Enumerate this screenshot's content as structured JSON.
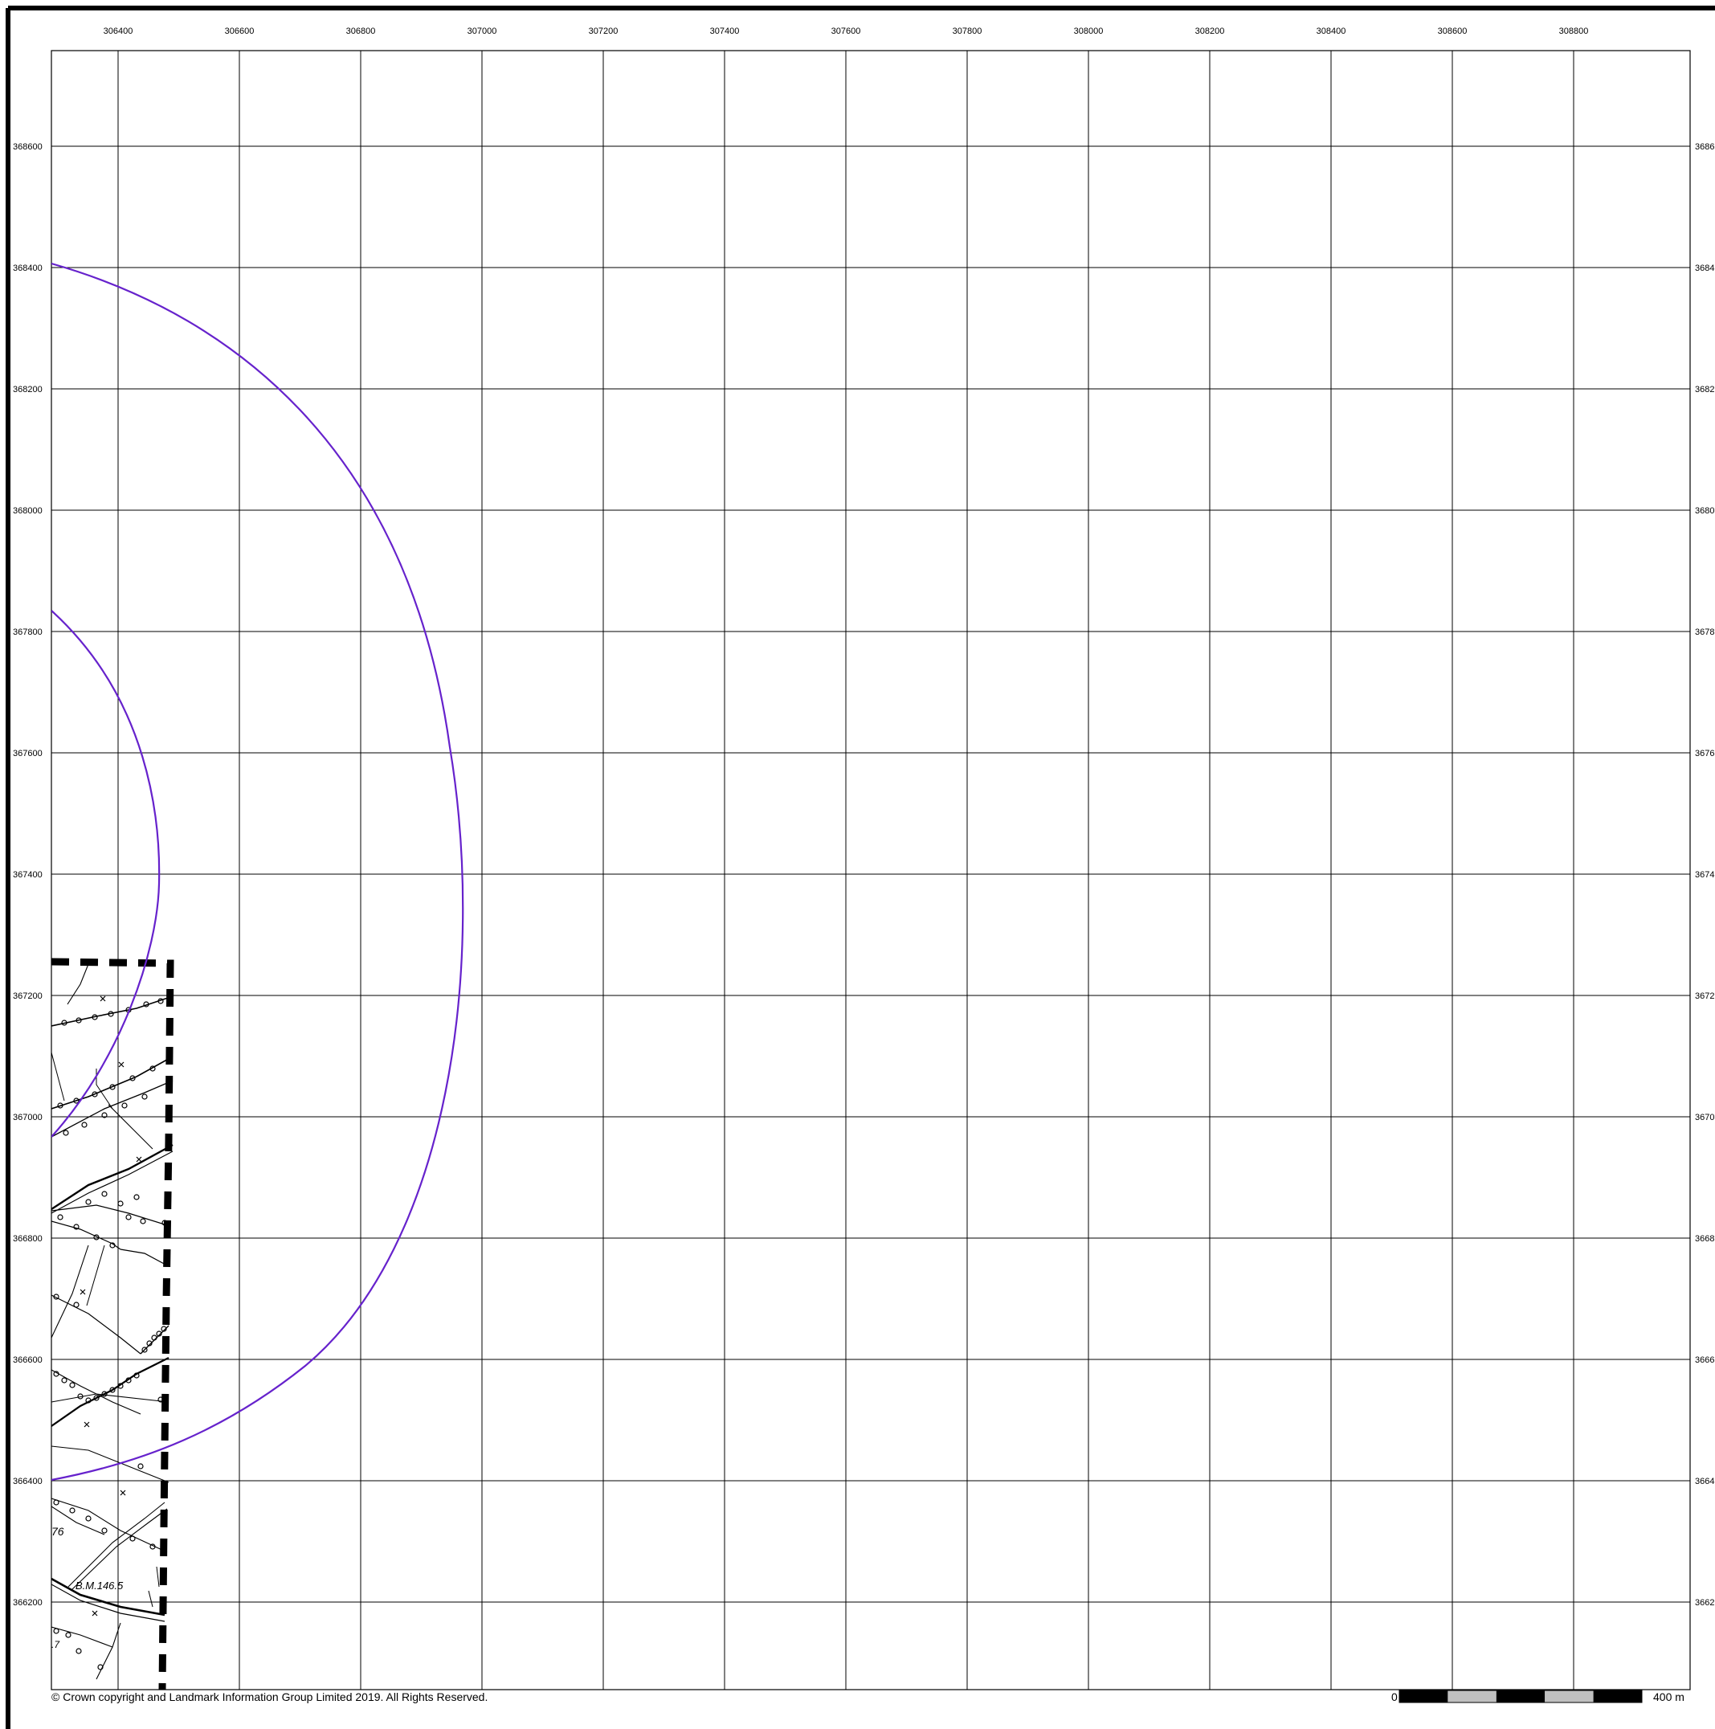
{
  "grid": {
    "eastings": [
      "306400",
      "306600",
      "306800",
      "307000",
      "307200",
      "307400",
      "307600",
      "307800",
      "308000",
      "308200",
      "308400",
      "308600",
      "308800"
    ],
    "northings": [
      "368600",
      "368400",
      "368200",
      "368000",
      "367800",
      "367600",
      "367400",
      "367200",
      "367000",
      "366800",
      "366600",
      "366400",
      "366200"
    ],
    "right_labels": [
      "3686",
      "3684",
      "3682",
      "3680",
      "3678",
      "3676",
      "3674",
      "3672",
      "3670",
      "3668",
      "3666",
      "3664",
      "3662"
    ]
  },
  "map_annotations": {
    "benchmark": "B.M.146.5",
    "parcel_number": "76",
    "fragment_number": ".7"
  },
  "footer": {
    "copyright": "© Crown copyright and Landmark Information Group Limited 2019.  All Rights Reserved."
  },
  "scale_bar": {
    "start_label": "0",
    "end_label": "400 m",
    "colors": [
      "#000000",
      "#c0c0c0",
      "#000000",
      "#c0c0c0",
      "#000000"
    ]
  },
  "styles": {
    "buffer_ring_color": "#6622cc",
    "site_boundary_color": "#000000",
    "grid_color": "#000000"
  },
  "icons": {
    "boundary": "dashed-boundary-line",
    "hedge": "hedge-symbol"
  }
}
